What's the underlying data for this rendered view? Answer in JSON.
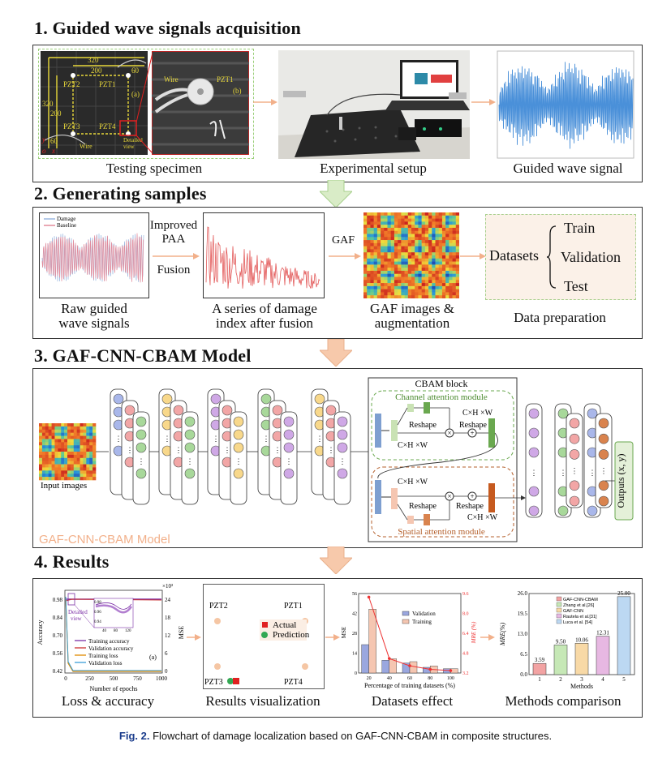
{
  "sections": [
    {
      "title": "1. Guided wave signals acquisition"
    },
    {
      "title": "2. Generating samples"
    },
    {
      "title": "3. GAF-CNN-CBAM Model"
    },
    {
      "title": "4. Results"
    }
  ],
  "s1": {
    "captions": [
      "Testing specimen",
      "Experimental setup",
      "Guided wave signal"
    ],
    "specimen": {
      "dims": [
        "320",
        "200",
        "60",
        "320",
        "200",
        "60"
      ],
      "sensors": [
        "PZT2",
        "PZT1",
        "PZT3",
        "PZT4"
      ],
      "label_a": "(a)",
      "label_b": "(b)",
      "wire": "Wire",
      "detailed": "Detailed\nview",
      "pzt1_b": "PZT1",
      "axis_y": "y",
      "axis_x": "x",
      "axis_o": "o"
    }
  },
  "s2": {
    "captions": [
      "Raw guided\nwave signals",
      "A series of damage\nindex after fusion",
      "GAF images &\naugmentation",
      "Data preparation"
    ],
    "legend": [
      "Damage",
      "Baseline"
    ],
    "arrow1": [
      "Improved",
      "PAA",
      "Fusion"
    ],
    "arrow2": "GAF",
    "datasets_label": "Datasets",
    "datasets_items": [
      "Train",
      "Validation",
      "Test"
    ]
  },
  "s3": {
    "input_label": "Input images",
    "cbam_title": "CBAM block",
    "channel": "Channel attention module",
    "spatial": "Spatial attention module",
    "reshape": "Reshape",
    "chw": "C×H ×W",
    "model_name": "GAF-CNN-CBAM Model",
    "outputs": "Outputs (x, y)"
  },
  "s4": {
    "captions": [
      "Loss & accuracy",
      "Results visualization",
      "Datasets effect",
      "Methods comparison"
    ],
    "loss_chart": {
      "ylabel_left": "Accuracy",
      "ylabel_right": "MSE",
      "xlabel": "Number of epochs",
      "right_exp": "×10³",
      "left_ticks": [
        "0.98",
        "0.84",
        "0.70",
        "0.56",
        "0.42"
      ],
      "right_ticks": [
        "24",
        "18",
        "12",
        "6",
        "0"
      ],
      "x_ticks": [
        "0",
        "250",
        "500",
        "750",
        "1000"
      ],
      "legend": [
        "Training accuracy",
        "Validation accuracy",
        "Training loss",
        "Validation loss"
      ],
      "label_a": "(a)",
      "detailed": "Detailed\nview",
      "inset_y": [
        "0.98",
        "0.96",
        "0.94"
      ],
      "inset_x": [
        "40",
        "80",
        "120"
      ]
    },
    "viz": {
      "pzt": [
        "PZT2",
        "PZT1",
        "PZT3",
        "PZT4"
      ],
      "legend": [
        "Actual",
        "Prediction"
      ]
    },
    "datasets_chart": {
      "type": "bar",
      "categories": [
        "20",
        "40",
        "60",
        "80",
        "100"
      ],
      "series": [
        {
          "name": "Validation",
          "values": [
            20,
            9,
            7,
            4,
            3
          ],
          "color": "#9aa7df"
        },
        {
          "name": "Training",
          "values": [
            45,
            10,
            8,
            5,
            3
          ],
          "color": "#f5c6b1"
        }
      ],
      "mre": [
        9.5,
        4.4,
        3.8,
        3.5,
        3.4
      ],
      "ylabel": "MSE",
      "ylabel_right": "MRE (%)",
      "xlabel": "Percentage of training datasets (%)",
      "y_ticks": [
        "56",
        "42",
        "28",
        "14",
        "0"
      ],
      "yr_ticks": [
        "9.6",
        "8.0",
        "6.4",
        "4.8",
        "3.2"
      ],
      "ylim": [
        0,
        56
      ]
    },
    "methods_chart": {
      "type": "bar",
      "categories": [
        "1",
        "2",
        "3",
        "4",
        "5"
      ],
      "values": [
        3.59,
        9.5,
        10.06,
        12.31,
        25.0
      ],
      "labels": [
        "3.59",
        "9.50",
        "10.06",
        "12.31",
        "25.00"
      ],
      "legend": [
        "GAF-CNN-CBAM",
        "Zhang et al.[26]",
        "GAF-CNN",
        "Rautela et al.[31]",
        "Luca et al. [54]"
      ],
      "colors": [
        "#f2a3a3",
        "#c6e8b6",
        "#f8d9a6",
        "#e7b8e2",
        "#bcd8f2"
      ],
      "ylabel": "MRE(%)",
      "xlabel": "Methods",
      "y_ticks": [
        "26.0",
        "19.5",
        "13.0",
        "6.5",
        "0.0"
      ],
      "ylim": [
        0,
        26
      ]
    }
  },
  "figure_caption": {
    "label": "Fig. 2.",
    "text": " Flowchart of damage localization based on GAF-CNN-CBAM in composite structures."
  }
}
